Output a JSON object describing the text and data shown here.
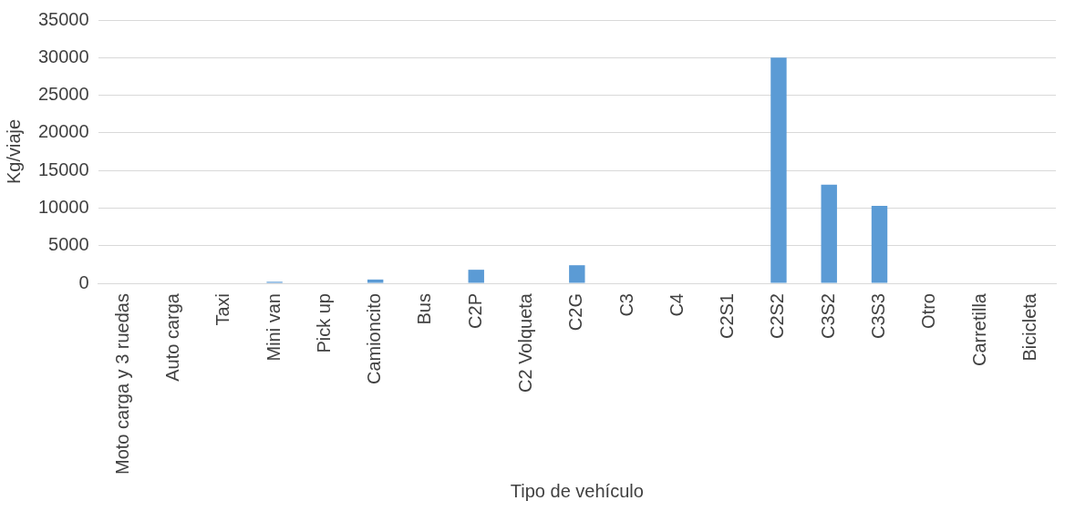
{
  "chart_data": {
    "type": "bar",
    "xlabel": "Tipo de vehículo",
    "ylabel": "Kg/viaje",
    "categories": [
      "Moto carga y 3 ruedas",
      "Auto carga",
      "Taxi",
      "Mini van",
      "Pick up",
      "Camioncito",
      "Bus",
      "C2P",
      "C2 Volqueta",
      "C2G",
      "C3",
      "C4",
      "C2S1",
      "C2S2",
      "C3S2",
      "C3S3",
      "Otro",
      "Carretilla",
      "Bicicleta"
    ],
    "values": [
      0,
      0,
      0,
      200,
      0,
      500,
      0,
      1800,
      0,
      2400,
      0,
      0,
      0,
      30000,
      13100,
      10300,
      0,
      0,
      0
    ],
    "color": "#5b9bd5",
    "ylim": [
      0,
      35000
    ],
    "yticks": [
      0,
      5000,
      10000,
      15000,
      20000,
      25000,
      30000,
      35000
    ],
    "grid": "y"
  }
}
